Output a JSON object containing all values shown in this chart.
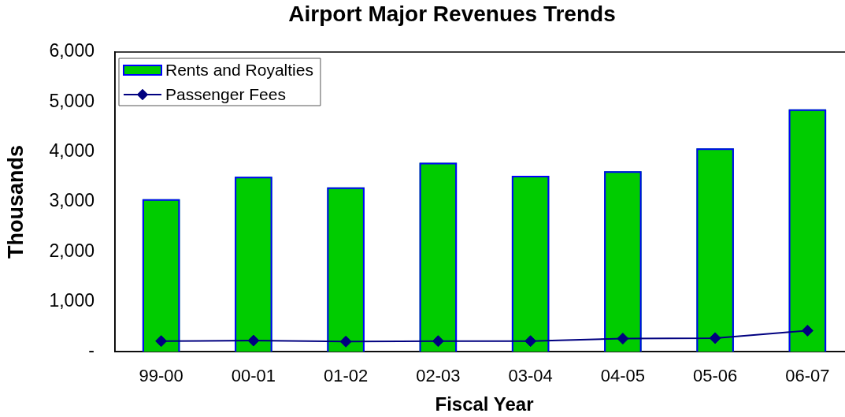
{
  "chart_data": {
    "type": "bar",
    "title": "Airport Major Revenues Trends",
    "xlabel": "Fiscal Year",
    "ylabel": "Thousands",
    "categories": [
      "99-00",
      "00-01",
      "01-02",
      "02-03",
      "03-04",
      "04-05",
      "05-06",
      "06-07"
    ],
    "series": [
      {
        "name": "Rents and Royalties",
        "color": "#00cc00",
        "values": [
          3050,
          3500,
          3290,
          3780,
          3520,
          3610,
          4070,
          4850
        ]
      },
      {
        "name": "Passenger Fees",
        "type": "line",
        "color": "#000080",
        "values": [
          210,
          220,
          200,
          210,
          210,
          260,
          270,
          420
        ]
      }
    ],
    "ylim": [
      0,
      6000
    ],
    "yticks": [
      {
        "value": 0,
        "label": "-"
      },
      {
        "value": 1000,
        "label": "1,000"
      },
      {
        "value": 2000,
        "label": "2,000"
      },
      {
        "value": 3000,
        "label": "3,000"
      },
      {
        "value": 4000,
        "label": "4,000"
      },
      {
        "value": 5000,
        "label": "5,000"
      },
      {
        "value": 6000,
        "label": "6,000"
      }
    ],
    "legend": "top left",
    "marker": "diamond",
    "grid": false
  }
}
